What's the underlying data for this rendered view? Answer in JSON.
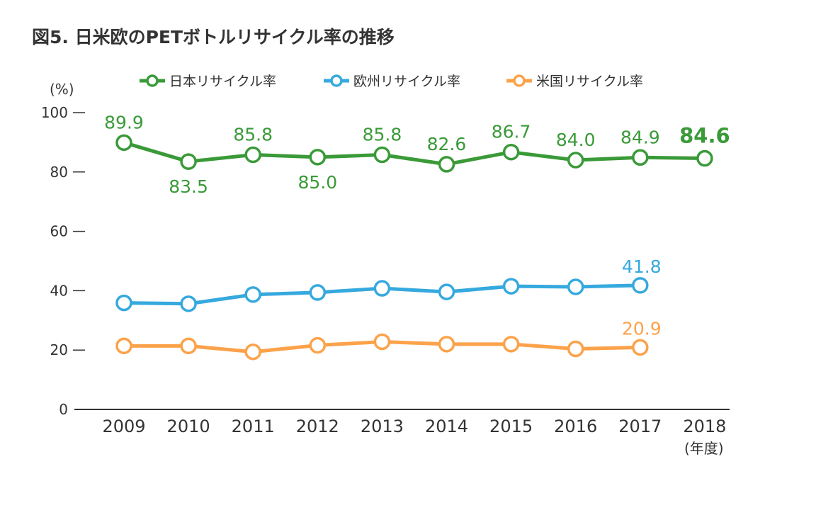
{
  "chart_data": {
    "type": "line",
    "title": "図5. 日米欧のPETボトルリサイクル率の推移",
    "ylabel": "(%)",
    "xlabel": "(年度)",
    "ylim": [
      0,
      100
    ],
    "yticks": [
      "0",
      "20",
      "40",
      "60",
      "80",
      "100"
    ],
    "categories": [
      "2009",
      "2010",
      "2011",
      "2012",
      "2013",
      "2014",
      "2015",
      "2016",
      "2017",
      "2018"
    ],
    "legend_position": "top",
    "grid": false,
    "series": [
      {
        "name": "日本リサイクル率",
        "color": "#3a9a38",
        "values": [
          89.9,
          83.5,
          85.8,
          85.0,
          85.8,
          82.6,
          86.7,
          84.0,
          84.9,
          84.6
        ],
        "labels": [
          "89.9",
          "83.5",
          "85.8",
          "85.0",
          "85.8",
          "82.6",
          "86.7",
          "84.0",
          "84.9",
          "84.6"
        ]
      },
      {
        "name": "欧州リサイクル率",
        "color": "#36a9de",
        "values": [
          35.9,
          35.6,
          38.7,
          39.4,
          40.8,
          39.6,
          41.5,
          41.3,
          41.8,
          null
        ],
        "labels": [
          null,
          null,
          null,
          null,
          null,
          null,
          null,
          null,
          "41.8",
          null
        ]
      },
      {
        "name": "米国リサイクル率",
        "color": "#fca24a",
        "values": [
          21.4,
          21.4,
          19.4,
          21.6,
          22.8,
          22.0,
          22.0,
          20.4,
          20.9,
          null
        ],
        "labels": [
          null,
          null,
          null,
          null,
          null,
          null,
          null,
          null,
          "20.9",
          null
        ]
      }
    ]
  }
}
